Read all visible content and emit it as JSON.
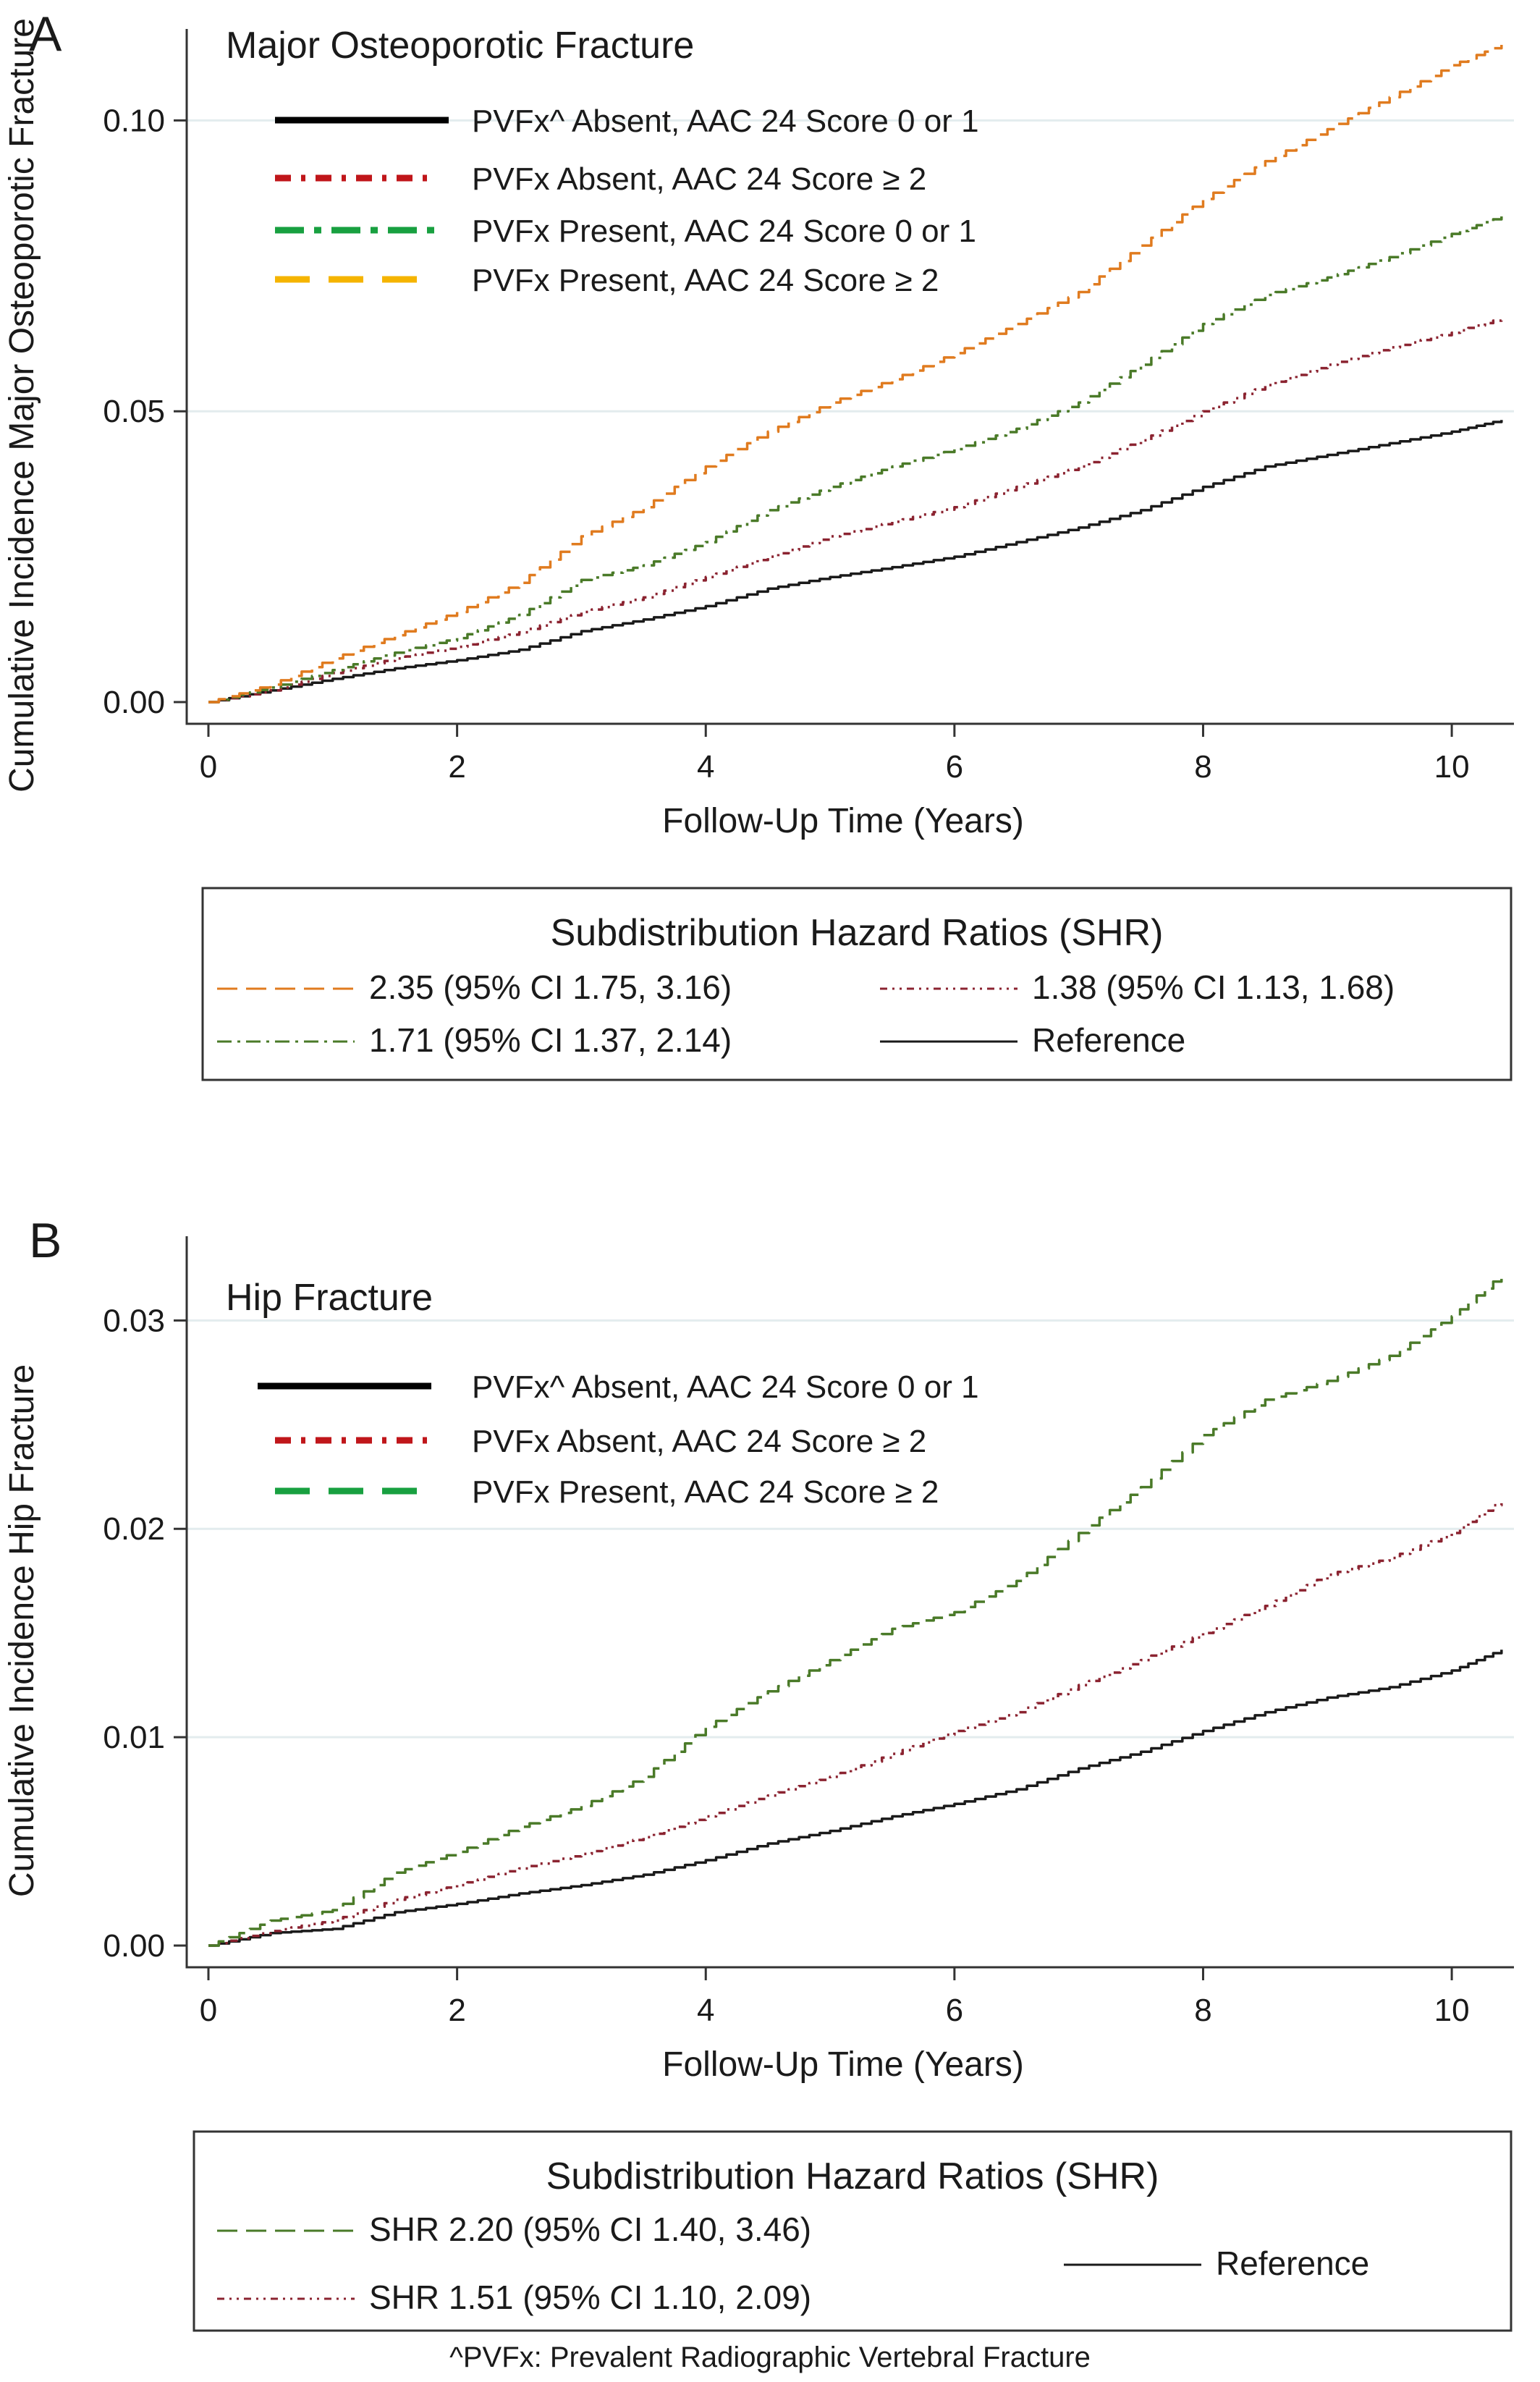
{
  "chart_data": [
    {
      "type": "line",
      "panel_letter": "A",
      "title": "Major Osteoporotic Fracture",
      "xlabel": "Follow-Up Time (Years)",
      "ylabel": "Cumulative Incidence Major Osteoporotic Fracture",
      "xlim": [
        0,
        10.5
      ],
      "ylim": [
        0,
        0.112
      ],
      "xticks": [
        0,
        2,
        4,
        6,
        8,
        10
      ],
      "yticks": [
        0.0,
        0.05,
        0.1
      ],
      "ytick_labels": [
        "0.00",
        "0.05",
        "0.10"
      ],
      "grid": true,
      "legend_title": "Subdistribution Hazard Ratios (SHR)",
      "legend": [
        {
          "series": 3,
          "label": "2.35 (95% CI 1.75, 3.16)"
        },
        {
          "series": 1,
          "label": "1.38 (95% CI 1.13, 1.68)"
        },
        {
          "series": 2,
          "label": "1.71 (95% CI 1.37, 2.14)"
        },
        {
          "series": 0,
          "label": "Reference"
        }
      ],
      "series": [
        {
          "name": "PVFx^ Absent, AAC 24 Score 0 or 1",
          "color": "#1a1a1a",
          "key_color": "#000000",
          "x": [
            0,
            0.5,
            1,
            1.5,
            2,
            2.5,
            3,
            3.5,
            4,
            4.5,
            5,
            5.5,
            6,
            6.5,
            7,
            7.5,
            8,
            8.5,
            9,
            9.5,
            10,
            10.4
          ],
          "y": [
            0,
            0.002,
            0.004,
            0.0058,
            0.0072,
            0.009,
            0.0122,
            0.0142,
            0.0165,
            0.0195,
            0.0215,
            0.0232,
            0.025,
            0.0275,
            0.03,
            0.033,
            0.037,
            0.0405,
            0.0425,
            0.0445,
            0.0465,
            0.0485
          ]
        },
        {
          "name": "PVFx Absent, AAC 24 Score ≥ 2",
          "color": "#8b2330",
          "key_color": "#c0161a",
          "x": [
            0,
            0.5,
            1,
            1.5,
            2,
            2.5,
            3,
            3.5,
            4,
            4.5,
            5,
            5.5,
            6,
            6.5,
            7,
            7.5,
            8,
            8.5,
            9,
            9.5,
            10,
            10.4
          ],
          "y": [
            0,
            0.002,
            0.005,
            0.0075,
            0.0095,
            0.012,
            0.0155,
            0.018,
            0.0215,
            0.025,
            0.0285,
            0.031,
            0.0335,
            0.037,
            0.0405,
            0.045,
            0.05,
            0.0545,
            0.058,
            0.061,
            0.0635,
            0.066
          ]
        },
        {
          "name": "PVFx Present, AAC 24 Score 0 or 1",
          "color": "#4a7a28",
          "key_color": "#18a040",
          "x": [
            0,
            0.5,
            1,
            1.5,
            2,
            2.5,
            3,
            3.5,
            4,
            4.5,
            5,
            5.5,
            6,
            6.5,
            7,
            7.5,
            8,
            8.5,
            9,
            9.5,
            10,
            10.4
          ],
          "y": [
            0,
            0.0025,
            0.0055,
            0.0085,
            0.011,
            0.015,
            0.021,
            0.0235,
            0.0275,
            0.033,
            0.037,
            0.0405,
            0.0435,
            0.047,
            0.0515,
            0.058,
            0.065,
            0.07,
            0.073,
            0.0765,
            0.0805,
            0.0835
          ]
        },
        {
          "name": "PVFx Present, AAC 24 Score ≥ 2",
          "color": "#e07b1f",
          "key_color": "#f5b400",
          "x": [
            0,
            0.5,
            1,
            1.5,
            2,
            2.5,
            3,
            3.5,
            4,
            4.5,
            5,
            5.5,
            6,
            6.5,
            7,
            7.5,
            8,
            8.5,
            9,
            9.5,
            10,
            10.4
          ],
          "y": [
            0,
            0.003,
            0.0075,
            0.0115,
            0.0155,
            0.0205,
            0.0285,
            0.0335,
            0.0405,
            0.0465,
            0.0515,
            0.0555,
            0.06,
            0.065,
            0.0705,
            0.0785,
            0.0865,
            0.093,
            0.0985,
            0.104,
            0.1095,
            0.113
          ]
        }
      ]
    },
    {
      "type": "line",
      "panel_letter": "B",
      "title": "Hip Fracture",
      "xlabel": "Follow-Up Time (Years)",
      "ylabel": "Cumulative Incidence Hip Fracture",
      "xlim": [
        0,
        10.5
      ],
      "ylim": [
        0,
        0.033
      ],
      "xticks": [
        0,
        2,
        4,
        6,
        8,
        10
      ],
      "yticks": [
        0.0,
        0.01,
        0.02,
        0.03
      ],
      "ytick_labels": [
        "0.00",
        "0.01",
        "0.02",
        "0.03"
      ],
      "grid": true,
      "legend_title": "Subdistribution Hazard Ratios (SHR)",
      "legend": [
        {
          "series": 2,
          "label": "SHR 2.20 (95% CI 1.40, 3.46)"
        },
        {
          "series": 0,
          "label": "Reference"
        },
        {
          "series": 1,
          "label": "SHR 1.51 (95% CI 1.10, 2.09)"
        }
      ],
      "series": [
        {
          "name": "PVFx^ Absent, AAC 24 Score 0 or 1",
          "color": "#1a1a1a",
          "key_color": "#000000",
          "x": [
            0,
            0.5,
            1,
            1.5,
            2,
            2.5,
            3,
            3.5,
            4,
            4.5,
            5,
            5.5,
            6,
            6.5,
            7,
            7.5,
            8,
            8.5,
            9,
            9.5,
            10,
            10.4
          ],
          "y": [
            0,
            0.0006,
            0.0008,
            0.0016,
            0.002,
            0.0025,
            0.0029,
            0.0034,
            0.0041,
            0.0049,
            0.0055,
            0.0062,
            0.0068,
            0.0075,
            0.0085,
            0.0093,
            0.0103,
            0.0112,
            0.0119,
            0.0124,
            0.0132,
            0.0142
          ]
        },
        {
          "name": "PVFx Absent, AAC 24 Score ≥ 2",
          "color": "#8b2330",
          "key_color": "#c0161a",
          "x": [
            0,
            0.5,
            1,
            1.5,
            2,
            2.5,
            3,
            3.5,
            4,
            4.5,
            5,
            5.5,
            6,
            6.5,
            7,
            7.5,
            8,
            8.5,
            9,
            9.5,
            10,
            10.4
          ],
          "y": [
            0,
            0.0007,
            0.0012,
            0.0022,
            0.0029,
            0.0037,
            0.0044,
            0.0052,
            0.0062,
            0.0072,
            0.0081,
            0.0092,
            0.0103,
            0.0112,
            0.0125,
            0.0137,
            0.015,
            0.0163,
            0.0178,
            0.0186,
            0.0198,
            0.0214
          ]
        },
        {
          "name": "PVFx Present, AAC 24 Score ≥ 2",
          "color": "#4a7a28",
          "key_color": "#18a040",
          "x": [
            0,
            0.5,
            1,
            1.5,
            2,
            2.5,
            3,
            3.5,
            4,
            4.5,
            5,
            5.5,
            6,
            6.5,
            7,
            7.5,
            8,
            8.5,
            9,
            9.5,
            10,
            10.4
          ],
          "y": [
            0,
            0.0012,
            0.0017,
            0.0035,
            0.0045,
            0.0057,
            0.0067,
            0.0081,
            0.0105,
            0.0122,
            0.0137,
            0.0152,
            0.016,
            0.0175,
            0.0198,
            0.022,
            0.0245,
            0.0262,
            0.0271,
            0.0283,
            0.0302,
            0.0322
          ]
        }
      ]
    }
  ],
  "footnote": "^PVFx: Prevalent Radiographic Vertebral Fracture"
}
